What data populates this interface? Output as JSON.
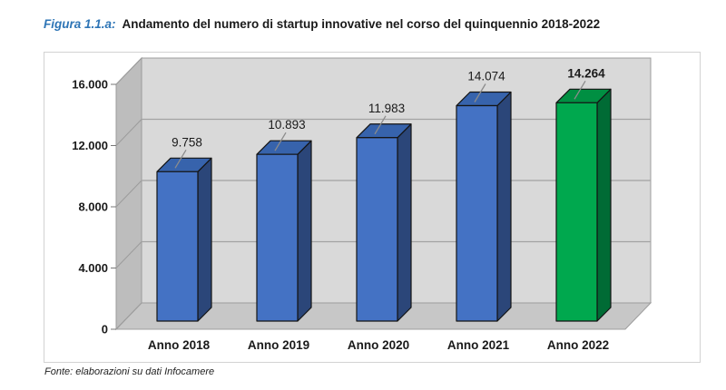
{
  "title": {
    "prefix": "Figura 1.1.a:",
    "text": "Andamento del numero di startup innovative nel corso del quinquennio 2018-2022"
  },
  "source": "Fonte: elaborazioni su dati Infocamere",
  "colors": {
    "title_accent": "#2E75B6",
    "back_wall": "#d9d9d9",
    "left_wall": "#bdbdbd",
    "floor": "#c7c7c7",
    "gridline": "#a3a3a3",
    "wall_edge": "#9c9c9c",
    "outline": "#141414",
    "leader_line": "#8c8c8c",
    "text": "#1a1a1a",
    "blue_front": "#4472C4",
    "blue_top": "#3763AC",
    "blue_side": "#2B4679",
    "green_front": "#00A84E",
    "green_top": "#008F42",
    "green_side": "#006B35"
  },
  "chart_data": {
    "type": "bar",
    "style": "3d-column",
    "title": "Andamento del numero di startup innovative nel corso del quinquennio 2018-2022",
    "categories": [
      "Anno 2018",
      "Anno 2019",
      "Anno 2020",
      "Anno 2021",
      "Anno 2022"
    ],
    "values": [
      9758,
      10893,
      11983,
      14074,
      14264
    ],
    "value_labels": [
      "9.758",
      "10.893",
      "11.983",
      "14.074",
      "14.264"
    ],
    "highlight_index": 4,
    "series_color_names": [
      "blue",
      "blue",
      "blue",
      "blue",
      "green"
    ],
    "xlabel": "",
    "ylabel": "",
    "ylim": [
      0,
      16000
    ],
    "y_ticks": [
      0,
      4000,
      8000,
      12000,
      16000
    ],
    "y_tick_labels": [
      "0",
      "4.000",
      "8.000",
      "12.000",
      "16.000"
    ],
    "gridlines": true,
    "legend_position": "none"
  }
}
